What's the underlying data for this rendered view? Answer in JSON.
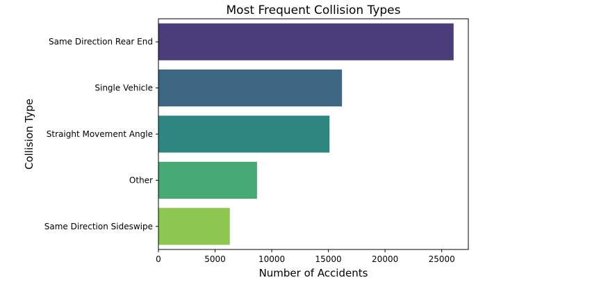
{
  "chart_data": {
    "type": "bar",
    "orientation": "horizontal",
    "title": "Most Frequent Collision Types",
    "xlabel": "Number of Accidents",
    "ylabel": "Collision Type",
    "categories": [
      "Same Direction Rear End",
      "Single Vehicle",
      "Straight Movement Angle",
      "Other",
      "Same Direction Sideswipe"
    ],
    "values": [
      26050,
      16200,
      15100,
      8700,
      6300
    ],
    "colors": [
      "#4a3d7a",
      "#3c6681",
      "#2d8780",
      "#46a875",
      "#8dc752"
    ],
    "xlim": [
      0,
      27350
    ],
    "xticks": [
      0,
      5000,
      10000,
      15000,
      20000,
      25000
    ],
    "grid": false,
    "legend": "none"
  }
}
